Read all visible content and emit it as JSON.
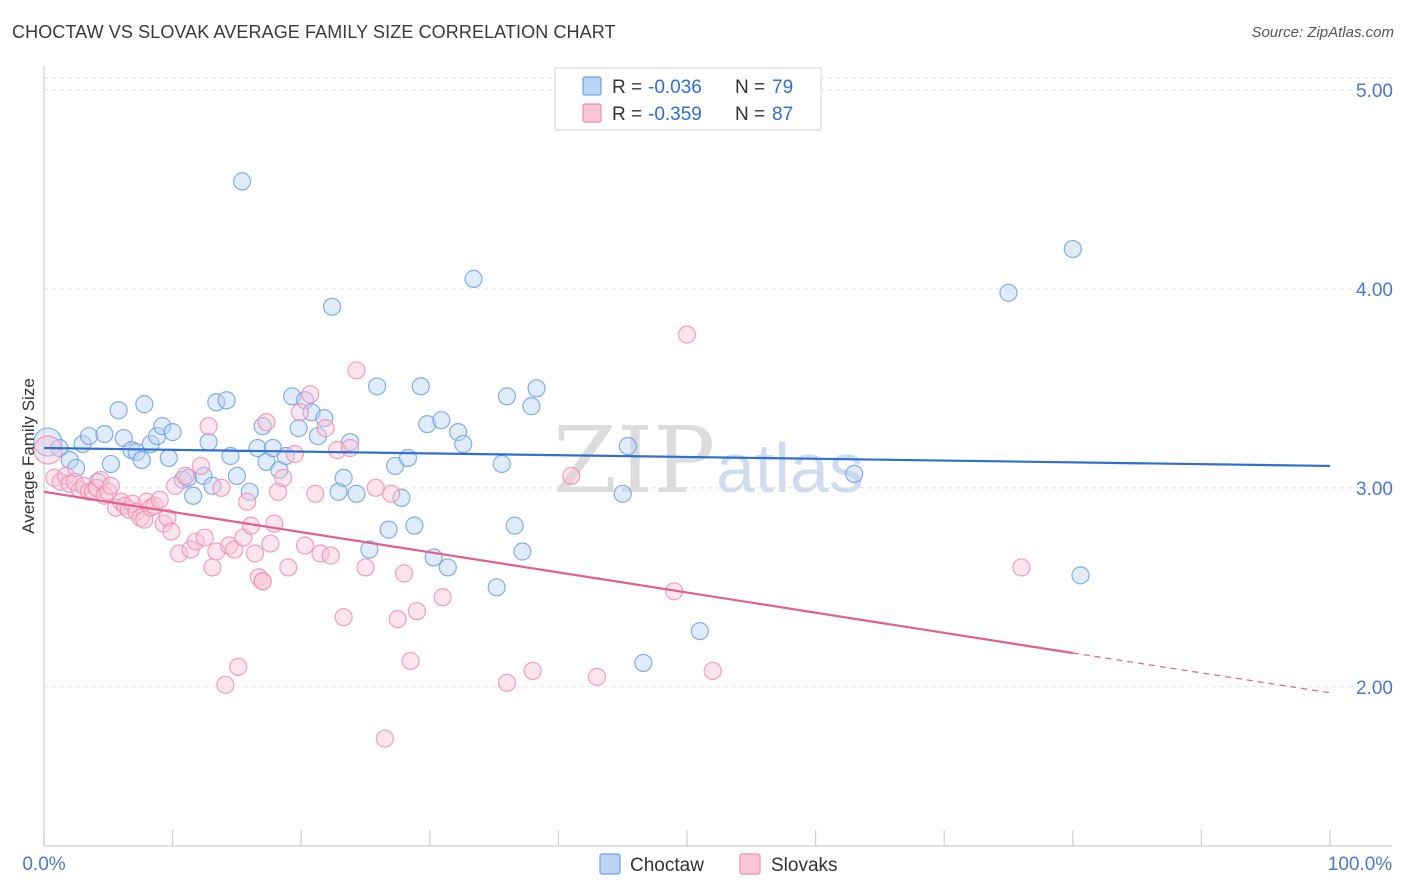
{
  "header": {
    "title": "CHOCTAW VS SLOVAK AVERAGE FAMILY SIZE CORRELATION CHART",
    "source": "Source: ZipAtlas.com"
  },
  "legend": {
    "choctaw": {
      "r_label": "R =",
      "r_value": "-0.036",
      "n_label": "N =",
      "n_value": "79"
    },
    "slovaks": {
      "r_label": "R =",
      "r_value": "-0.359",
      "n_label": "N =",
      "n_value": "87"
    }
  },
  "bottom_legend": {
    "choctaw": "Choctaw",
    "slovaks": "Slovaks"
  },
  "watermark": {
    "zip": "ZIP",
    "atlas": "atlas"
  },
  "chart_data": {
    "type": "scatter",
    "title": "CHOCTAW VS SLOVAK AVERAGE FAMILY SIZE CORRELATION CHART",
    "xlabel": "",
    "ylabel": "Average Family Size",
    "xlim": [
      0,
      100
    ],
    "ylim": [
      1.2,
      5.15
    ],
    "x_tick_labels": [
      "0.0%",
      "100.0%"
    ],
    "y_ticks": [
      2.0,
      3.0,
      4.0,
      5.0
    ],
    "y_tick_labels": [
      "2.00",
      "3.00",
      "4.00",
      "5.00"
    ],
    "grid": true,
    "colors": {
      "choctaw": "#6fa0e6",
      "slovaks": "#f08fb0",
      "choctaw_line": "#2e6fd0",
      "slovaks_line": "#e0608e"
    },
    "series": [
      {
        "name": "Choctaw",
        "r": -0.036,
        "n": 79,
        "trend": {
          "x0": 0,
          "y0": 3.2,
          "x1": 100,
          "y1": 3.11
        },
        "points": [
          [
            0.3,
            3.23
          ],
          [
            1.2,
            3.2
          ],
          [
            2.0,
            3.14
          ],
          [
            2.5,
            3.1
          ],
          [
            3.0,
            3.22
          ],
          [
            3.5,
            3.26
          ],
          [
            4.2,
            3.03
          ],
          [
            4.7,
            3.27
          ],
          [
            5.2,
            3.12
          ],
          [
            5.8,
            3.39
          ],
          [
            6.2,
            3.25
          ],
          [
            6.8,
            3.19
          ],
          [
            7.2,
            3.18
          ],
          [
            7.6,
            3.14
          ],
          [
            7.8,
            3.42
          ],
          [
            8.3,
            3.22
          ],
          [
            8.8,
            3.26
          ],
          [
            9.2,
            3.31
          ],
          [
            9.7,
            3.15
          ],
          [
            10.0,
            3.28
          ],
          [
            10.8,
            3.04
          ],
          [
            11.2,
            3.05
          ],
          [
            11.6,
            2.96
          ],
          [
            12.4,
            3.06
          ],
          [
            12.8,
            3.23
          ],
          [
            13.1,
            3.01
          ],
          [
            13.4,
            3.43
          ],
          [
            14.2,
            3.44
          ],
          [
            14.5,
            3.16
          ],
          [
            15.0,
            3.06
          ],
          [
            15.4,
            4.54
          ],
          [
            16.0,
            2.98
          ],
          [
            16.6,
            3.2
          ],
          [
            17.0,
            3.31
          ],
          [
            17.3,
            3.13
          ],
          [
            17.8,
            3.2
          ],
          [
            18.3,
            3.09
          ],
          [
            18.8,
            3.16
          ],
          [
            19.3,
            3.46
          ],
          [
            19.8,
            3.3
          ],
          [
            20.3,
            3.44
          ],
          [
            20.8,
            3.38
          ],
          [
            21.3,
            3.26
          ],
          [
            21.8,
            3.35
          ],
          [
            22.4,
            3.91
          ],
          [
            22.9,
            2.98
          ],
          [
            23.3,
            3.05
          ],
          [
            23.8,
            3.23
          ],
          [
            24.3,
            2.97
          ],
          [
            25.3,
            2.69
          ],
          [
            25.9,
            3.51
          ],
          [
            26.8,
            2.79
          ],
          [
            27.3,
            3.11
          ],
          [
            27.8,
            2.95
          ],
          [
            28.3,
            3.15
          ],
          [
            28.8,
            2.81
          ],
          [
            29.3,
            3.51
          ],
          [
            29.8,
            3.32
          ],
          [
            30.3,
            2.65
          ],
          [
            30.9,
            3.34
          ],
          [
            31.4,
            2.6
          ],
          [
            32.2,
            3.28
          ],
          [
            32.6,
            3.22
          ],
          [
            33.4,
            4.05
          ],
          [
            35.2,
            2.5
          ],
          [
            35.6,
            3.12
          ],
          [
            36.0,
            3.46
          ],
          [
            36.6,
            2.81
          ],
          [
            37.2,
            2.68
          ],
          [
            37.9,
            3.41
          ],
          [
            38.3,
            3.5
          ],
          [
            45.0,
            2.97
          ],
          [
            45.4,
            3.21
          ],
          [
            46.6,
            2.12
          ],
          [
            51.0,
            2.28
          ],
          [
            75.0,
            3.98
          ],
          [
            80.0,
            4.2
          ],
          [
            80.6,
            2.56
          ],
          [
            63.0,
            3.07
          ]
        ]
      },
      {
        "name": "Slovaks",
        "r": -0.359,
        "n": 87,
        "trend": {
          "x0": 0,
          "y0": 2.98,
          "x1": 80,
          "y1": 2.17,
          "dashed_to_x": 100,
          "dashed_to_y": 1.97
        },
        "points": [
          [
            0.3,
            3.19
          ],
          [
            0.8,
            3.05
          ],
          [
            1.3,
            3.03
          ],
          [
            1.7,
            3.06
          ],
          [
            2.0,
            3.02
          ],
          [
            2.4,
            3.03
          ],
          [
            2.8,
            2.99
          ],
          [
            3.1,
            3.01
          ],
          [
            3.5,
            2.98
          ],
          [
            3.8,
            2.98
          ],
          [
            4.1,
            3.0
          ],
          [
            4.4,
            3.04
          ],
          [
            4.7,
            2.96
          ],
          [
            5.0,
            2.98
          ],
          [
            5.2,
            3.01
          ],
          [
            5.6,
            2.9
          ],
          [
            6.0,
            2.93
          ],
          [
            6.3,
            2.91
          ],
          [
            6.6,
            2.89
          ],
          [
            6.9,
            2.92
          ],
          [
            7.2,
            2.88
          ],
          [
            7.5,
            2.85
          ],
          [
            7.8,
            2.84
          ],
          [
            8.0,
            2.93
          ],
          [
            8.3,
            2.9
          ],
          [
            8.6,
            2.91
          ],
          [
            9.0,
            2.94
          ],
          [
            9.3,
            2.82
          ],
          [
            9.6,
            2.85
          ],
          [
            9.9,
            2.78
          ],
          [
            10.2,
            3.01
          ],
          [
            10.5,
            2.67
          ],
          [
            11.0,
            3.06
          ],
          [
            11.4,
            2.69
          ],
          [
            11.8,
            2.73
          ],
          [
            12.2,
            3.11
          ],
          [
            12.5,
            2.75
          ],
          [
            12.8,
            3.31
          ],
          [
            13.1,
            2.6
          ],
          [
            13.4,
            2.68
          ],
          [
            13.8,
            3.0
          ],
          [
            14.1,
            2.01
          ],
          [
            14.4,
            2.71
          ],
          [
            14.8,
            2.69
          ],
          [
            15.1,
            2.1
          ],
          [
            15.5,
            2.75
          ],
          [
            15.8,
            2.93
          ],
          [
            16.1,
            2.81
          ],
          [
            16.4,
            2.67
          ],
          [
            16.7,
            2.55
          ],
          [
            17.0,
            2.53
          ],
          [
            17.3,
            3.33
          ],
          [
            17.6,
            2.72
          ],
          [
            17.9,
            2.82
          ],
          [
            18.2,
            2.98
          ],
          [
            18.6,
            3.05
          ],
          [
            19.0,
            2.6
          ],
          [
            19.5,
            3.17
          ],
          [
            19.9,
            3.38
          ],
          [
            20.3,
            2.71
          ],
          [
            20.7,
            3.47
          ],
          [
            21.1,
            2.97
          ],
          [
            21.5,
            2.67
          ],
          [
            21.9,
            3.3
          ],
          [
            22.3,
            2.66
          ],
          [
            22.8,
            3.19
          ],
          [
            23.3,
            2.35
          ],
          [
            23.8,
            3.2
          ],
          [
            24.3,
            3.59
          ],
          [
            25.0,
            2.6
          ],
          [
            25.8,
            3.0
          ],
          [
            26.5,
            1.74
          ],
          [
            27.0,
            2.97
          ],
          [
            27.5,
            2.34
          ],
          [
            28.0,
            2.57
          ],
          [
            28.5,
            2.13
          ],
          [
            29.0,
            2.38
          ],
          [
            31.0,
            2.45
          ],
          [
            36.0,
            2.02
          ],
          [
            38.0,
            2.08
          ],
          [
            41.0,
            3.06
          ],
          [
            43.0,
            2.05
          ],
          [
            49.0,
            2.48
          ],
          [
            50.0,
            3.77
          ],
          [
            52.0,
            2.08
          ],
          [
            76.0,
            2.6
          ],
          [
            17.0,
            2.53
          ]
        ]
      }
    ]
  }
}
